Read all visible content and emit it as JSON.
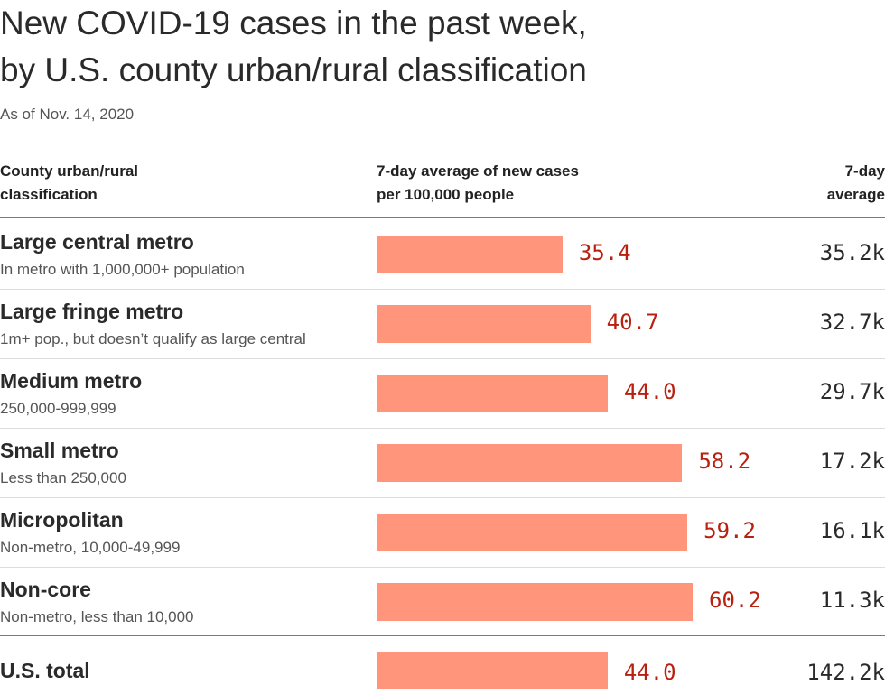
{
  "title_lines": [
    "New COVID-19 cases in the past week,",
    "by U.S. county urban/rural classification"
  ],
  "subtitle": "As of Nov. 14, 2020",
  "columns": {
    "category": [
      "County urban/rural",
      "classification"
    ],
    "rate": [
      "7-day average of new cases",
      "per 100,000 people"
    ],
    "average": [
      "7-day",
      "average"
    ]
  },
  "colors": {
    "bar": "#ff957a",
    "value_text": "#b8200f",
    "text": "#2a2a2a"
  },
  "chart_data": {
    "type": "bar",
    "orientation": "horizontal",
    "xlim": [
      0,
      60.2
    ],
    "categories": [
      "Large central metro",
      "Large fringe metro",
      "Medium metro",
      "Small metro",
      "Micropolitan",
      "Non-core"
    ],
    "descriptions": [
      "In metro with 1,000,000+ population",
      "1m+ pop., but doesn’t qualify as large central",
      "250,000-999,999",
      "Less than 250,000",
      "Non-metro, 10,000-49,999",
      "Non-metro, less than 10,000"
    ],
    "values": [
      35.4,
      40.7,
      44.0,
      58.2,
      59.2,
      60.2
    ],
    "value_labels": [
      "35.4",
      "40.7",
      "44.0",
      "58.2",
      "59.2",
      "60.2"
    ],
    "averages": [
      "35.2k",
      "32.7k",
      "29.7k",
      "17.2k",
      "16.1k",
      "11.3k"
    ],
    "total": {
      "label": "U.S. total",
      "value": 44.0,
      "value_label": "44.0",
      "average": "142.2k"
    }
  }
}
